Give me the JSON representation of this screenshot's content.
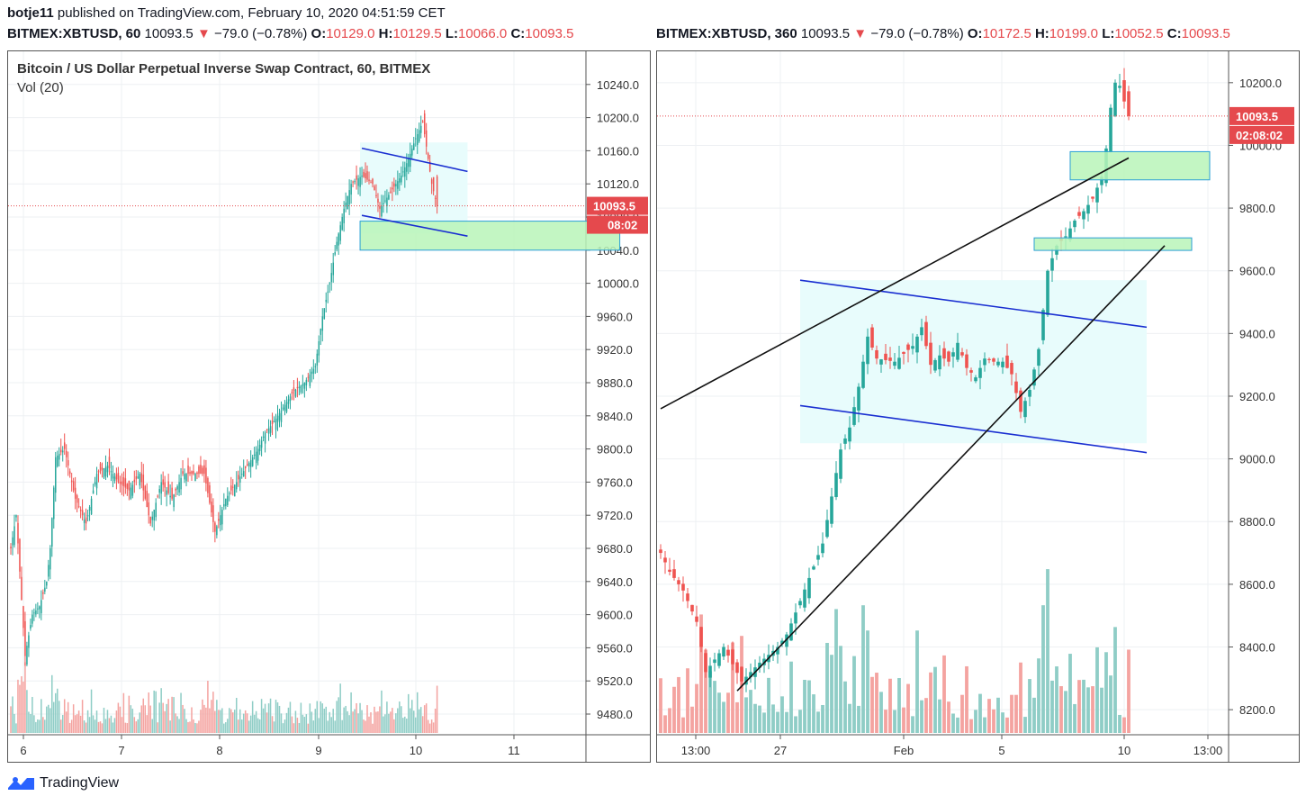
{
  "header": {
    "published": "botje11 published on TradingView.com, February 10, 2020 04:51:59 CET",
    "author": "botje11"
  },
  "colors": {
    "up": "#26a69a",
    "down": "#ef5350",
    "vol_up": "#8fcdc6",
    "vol_down": "#f4a3a0",
    "channel_blue": "#1a2fd1",
    "trend_black": "#111111",
    "zone_green": "#b8f5b8",
    "zone_border": "#2a9fd6",
    "cyan_fill": "#e8fcfc",
    "price_tag": "#e5494d"
  },
  "chart_data": [
    {
      "type": "candlestick",
      "symbol_line": {
        "symbol": "BITMEX:XBTUSD, 60",
        "last": "10093.5",
        "change": "−79.0 (−0.78%)",
        "o_label": "O:",
        "o": "10129.0",
        "h_label": "H:",
        "h": "10129.5",
        "l_label": "L:",
        "l": "10066.0",
        "c_label": "C:",
        "c": "10093.5"
      },
      "title": "Bitcoin / US Dollar Perpetual Inverse Swap Contract, 60, BITMEX",
      "volume_label": "Vol (20)",
      "y_ticks": [
        "10240.0",
        "10200.0",
        "10160.0",
        "10120.0",
        "10080.0",
        "10040.0",
        "10000.0",
        "9960.0",
        "9920.0",
        "9880.0",
        "9840.0",
        "9800.0",
        "9760.0",
        "9720.0",
        "9680.0",
        "9640.0",
        "9600.0",
        "9560.0",
        "9520.0",
        "9480.0"
      ],
      "ylim": [
        9455,
        10280
      ],
      "x_ticks": [
        "6",
        "7",
        "8",
        "9",
        "10",
        "11"
      ],
      "last_price_label": "10093.5",
      "countdown_label": "08:02",
      "last_price": 10093.5,
      "keypoints": [
        [
          0,
          9680
        ],
        [
          3,
          9720
        ],
        [
          8,
          9550
        ],
        [
          12,
          9600
        ],
        [
          16,
          9610
        ],
        [
          20,
          9640
        ],
        [
          22,
          9680
        ],
        [
          25,
          9790
        ],
        [
          30,
          9800
        ],
        [
          36,
          9740
        ],
        [
          42,
          9710
        ],
        [
          48,
          9770
        ],
        [
          54,
          9780
        ],
        [
          60,
          9760
        ],
        [
          66,
          9750
        ],
        [
          72,
          9770
        ],
        [
          78,
          9710
        ],
        [
          84,
          9760
        ],
        [
          90,
          9740
        ],
        [
          96,
          9770
        ],
        [
          102,
          9770
        ],
        [
          108,
          9770
        ],
        [
          114,
          9700
        ],
        [
          120,
          9740
        ],
        [
          126,
          9760
        ],
        [
          132,
          9780
        ],
        [
          138,
          9800
        ],
        [
          142,
          9820
        ],
        [
          146,
          9830
        ],
        [
          152,
          9850
        ],
        [
          158,
          9870
        ],
        [
          164,
          9880
        ],
        [
          170,
          9900
        ],
        [
          174,
          9960
        ],
        [
          178,
          10000
        ],
        [
          182,
          10050
        ],
        [
          186,
          10090
        ],
        [
          190,
          10120
        ],
        [
          196,
          10130
        ],
        [
          202,
          10120
        ],
        [
          206,
          10090
        ],
        [
          212,
          10110
        ],
        [
          218,
          10130
        ],
        [
          222,
          10150
        ],
        [
          226,
          10175
        ],
        [
          230,
          10195
        ],
        [
          235,
          10120
        ],
        [
          238,
          10093.5
        ]
      ],
      "zones": [
        {
          "x0": 195,
          "x1": 340,
          "y0": 10040,
          "y1": 10075
        }
      ],
      "cyan_box": {
        "x0": 195,
        "x1": 255,
        "y0": 10060,
        "y1": 10170
      },
      "blue_lines": [
        {
          "x0": 196,
          "y0": 10163,
          "x1": 255,
          "y1": 10135
        },
        {
          "x0": 196,
          "y0": 10082,
          "x1": 255,
          "y1": 10057
        }
      ]
    },
    {
      "type": "candlestick",
      "symbol_line": {
        "symbol": "BITMEX:XBTUSD, 360",
        "last": "10093.5",
        "change": "−79.0 (−0.78%)",
        "o_label": "O:",
        "o": "10172.5",
        "h_label": "H:",
        "h": "10199.0",
        "l_label": "L:",
        "l": "10052.5",
        "c_label": "C:",
        "c": "10093.5"
      },
      "y_ticks": [
        "10200.0",
        "10000.0",
        "9800.0",
        "9600.0",
        "9400.0",
        "9200.0",
        "9000.0",
        "8800.0",
        "8600.0",
        "8400.0",
        "8200.0"
      ],
      "ylim": [
        8120,
        10300
      ],
      "x_ticks": [
        "13:00",
        "27",
        "Feb",
        "5",
        "10",
        "13:00"
      ],
      "last_price_label": "10093.5",
      "countdown_label": "02:08:02",
      "last_price": 10093.5,
      "keypoints": [
        [
          0,
          8700
        ],
        [
          2,
          8640
        ],
        [
          5,
          8580
        ],
        [
          8,
          8480
        ],
        [
          10,
          8320
        ],
        [
          14,
          8400
        ],
        [
          18,
          8290
        ],
        [
          22,
          8350
        ],
        [
          26,
          8400
        ],
        [
          28,
          8440
        ],
        [
          30,
          8510
        ],
        [
          33,
          8620
        ],
        [
          36,
          8730
        ],
        [
          38,
          8880
        ],
        [
          40,
          9030
        ],
        [
          42,
          9100
        ],
        [
          44,
          9230
        ],
        [
          46,
          9390
        ],
        [
          48,
          9320
        ],
        [
          52,
          9310
        ],
        [
          56,
          9360
        ],
        [
          58,
          9420
        ],
        [
          60,
          9300
        ],
        [
          62,
          9330
        ],
        [
          64,
          9310
        ],
        [
          66,
          9370
        ],
        [
          68,
          9290
        ],
        [
          70,
          9260
        ],
        [
          72,
          9320
        ],
        [
          74,
          9310
        ],
        [
          76,
          9310
        ],
        [
          78,
          9270
        ],
        [
          80,
          9150
        ],
        [
          82,
          9220
        ],
        [
          84,
          9350
        ],
        [
          86,
          9600
        ],
        [
          88,
          9680
        ],
        [
          90,
          9710
        ],
        [
          92,
          9760
        ],
        [
          94,
          9790
        ],
        [
          96,
          9830
        ],
        [
          98,
          9900
        ],
        [
          99,
          9990
        ],
        [
          100,
          10120
        ],
        [
          101,
          10200
        ],
        [
          102,
          10190
        ],
        [
          103,
          10140
        ],
        [
          104,
          10093.5
        ]
      ],
      "zones": [
        {
          "x0": 91,
          "x1": 122,
          "y0": 9890,
          "y1": 9980
        },
        {
          "x0": 83,
          "x1": 118,
          "y0": 9665,
          "y1": 9705
        }
      ],
      "cyan_box": {
        "x0": 31,
        "x1": 108,
        "y0": 9050,
        "y1": 9570
      },
      "blue_lines": [
        {
          "x0": 31,
          "y0": 9570,
          "x1": 108,
          "y0b": 0,
          "y1": 9420
        },
        {
          "x0": 31,
          "y0": 9170,
          "x1": 108,
          "y1": 9020
        }
      ],
      "black_lines": [
        {
          "x0": 0,
          "y0": 9160,
          "x1": 104,
          "y1": 9960
        },
        {
          "x0": 17,
          "y0": 8260,
          "x1": 112,
          "y1": 9680
        }
      ]
    }
  ],
  "brand": {
    "name": "TradingView"
  }
}
